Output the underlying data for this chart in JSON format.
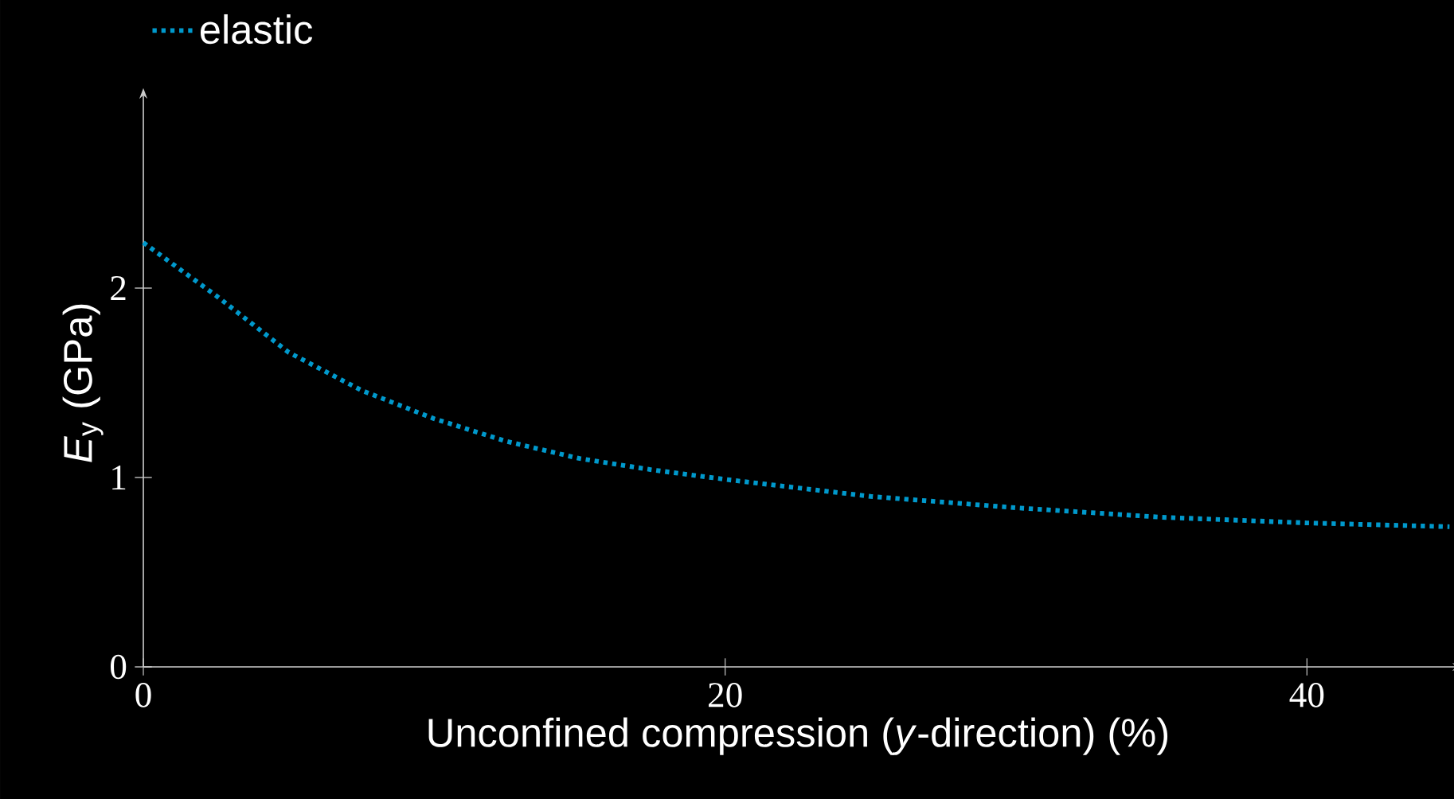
{
  "chart_data": {
    "type": "line",
    "xlabel": "Unconfined compression (*y*-direction) (%)",
    "ylabel": "*E*$_{y}$ (GPa)",
    "x": [
      0,
      2.5,
      5,
      7.5,
      10,
      12.5,
      15,
      17.5,
      20,
      25,
      30,
      35,
      40,
      44.9
    ],
    "series": [
      {
        "name": "elastic",
        "color": "#0099cc",
        "values": [
          2.24,
          1.96,
          1.66,
          1.46,
          1.31,
          1.19,
          1.1,
          1.04,
          0.99,
          0.9,
          0.84,
          0.79,
          0.76,
          0.74
        ]
      }
    ],
    "xlim": [
      0,
      45
    ],
    "ylim": [
      0,
      3
    ],
    "xticks": [
      0,
      20,
      40
    ],
    "yticks": [
      0,
      1,
      2
    ],
    "legend": "top left",
    "line_style": "dotted",
    "marker": "none"
  }
}
